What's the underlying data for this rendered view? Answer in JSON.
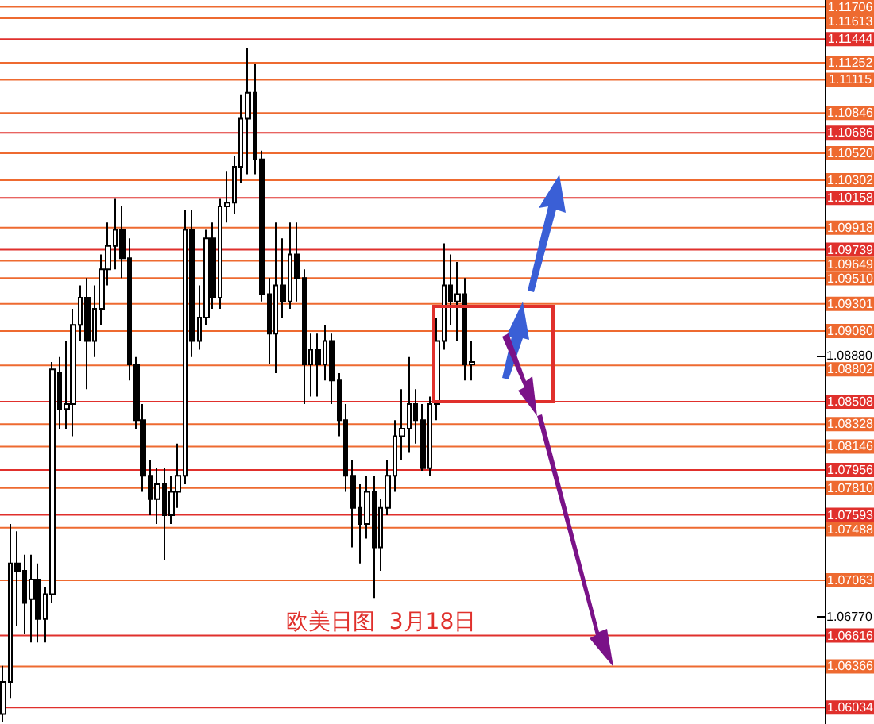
{
  "chart_data": {
    "type": "candlestick",
    "color": "#000000",
    "categories": [
      null,
      null,
      null,
      null,
      null,
      null,
      null,
      null,
      null,
      null,
      null,
      null,
      null,
      null,
      null,
      null,
      null,
      null,
      null,
      null,
      null,
      null,
      null,
      null,
      null,
      null,
      null,
      null,
      null,
      null,
      null,
      null,
      null,
      null,
      null,
      null,
      null,
      null,
      null,
      null,
      null,
      null,
      null,
      null,
      null,
      null,
      null,
      null,
      null,
      null,
      null,
      null,
      null,
      null,
      null,
      null,
      null,
      null,
      null,
      null,
      null,
      null,
      null,
      null,
      null,
      null,
      null,
      null,
      null,
      null,
      null,
      null,
      null,
      null,
      null,
      null,
      null,
      null,
      null,
      null,
      null,
      null,
      null,
      null,
      null,
      null,
      null,
      null,
      null,
      null,
      null,
      null,
      null,
      null,
      null,
      null,
      null,
      null,
      null,
      null,
      null,
      null,
      null,
      null,
      null,
      null,
      null,
      null,
      null,
      null,
      null,
      null,
      null,
      null,
      null,
      null,
      null,
      null
    ],
    "ohlc": [
      [
        1.0598,
        1.0637,
        1.0592,
        1.0624
      ],
      [
        1.0624,
        1.0752,
        1.0611,
        1.072
      ],
      [
        1.072,
        1.0746,
        1.0669,
        1.0714
      ],
      [
        1.0714,
        1.0727,
        1.0663,
        1.0688
      ],
      [
        1.0691,
        1.0727,
        1.0656,
        1.0707
      ],
      [
        1.0707,
        1.072,
        1.0656,
        1.0675
      ],
      [
        1.0675,
        1.0701,
        1.0656,
        1.0695
      ],
      [
        1.0695,
        1.0883,
        1.0688,
        1.0877
      ],
      [
        1.0874,
        1.0887,
        1.0829,
        1.0845
      ],
      [
        1.0845,
        1.09,
        1.0829,
        1.0849
      ],
      [
        1.0849,
        1.0926,
        1.0823,
        1.0913
      ],
      [
        1.0913,
        1.0945,
        1.09,
        1.0935
      ],
      [
        1.0935,
        1.0951,
        1.0861,
        1.09
      ],
      [
        1.09,
        1.0945,
        1.0887,
        1.0926
      ],
      [
        1.0926,
        1.097,
        1.0913,
        1.0958
      ],
      [
        1.0958,
        1.0996,
        1.0945,
        1.0977
      ],
      [
        1.0977,
        1.1015,
        1.0958,
        1.099
      ],
      [
        1.099,
        1.1009,
        1.0951,
        1.0967
      ],
      [
        1.0967,
        1.0983,
        1.0868,
        1.0881
      ],
      [
        1.0881,
        1.0887,
        1.0829,
        1.0836
      ],
      [
        1.0836,
        1.0849,
        1.0778,
        1.0791
      ],
      [
        1.0791,
        1.0804,
        1.0759,
        1.0772
      ],
      [
        1.0772,
        1.0797,
        1.0752,
        1.0784
      ],
      [
        1.0784,
        1.0797,
        1.0723,
        1.0759
      ],
      [
        1.0759,
        1.0791,
        1.0752,
        1.0778
      ],
      [
        1.0778,
        1.0817,
        1.0765,
        1.0791
      ],
      [
        1.0791,
        1.1006,
        1.0784,
        1.099
      ],
      [
        1.099,
        1.1006,
        1.0887,
        1.09
      ],
      [
        1.09,
        1.0945,
        1.0893,
        1.0919
      ],
      [
        1.0919,
        1.099,
        1.0913,
        1.0983
      ],
      [
        1.0983,
        1.0996,
        1.0926,
        1.0935
      ],
      [
        1.0935,
        1.1015,
        1.0926,
        1.1009
      ],
      [
        1.1009,
        1.1037,
        1.0996,
        1.1012
      ],
      [
        1.1012,
        1.105,
        1.1003,
        1.1041
      ],
      [
        1.1041,
        1.1099,
        1.1028,
        1.108
      ],
      [
        1.108,
        1.1137,
        1.1035,
        1.1101
      ],
      [
        1.1101,
        1.1124,
        1.1035,
        1.1047
      ],
      [
        1.1047,
        1.1054,
        1.0932,
        1.0938
      ],
      [
        1.0938,
        1.0951,
        1.0881,
        1.0906
      ],
      [
        1.0906,
        1.0996,
        1.0874,
        1.0945
      ],
      [
        1.0945,
        1.0983,
        1.0919,
        1.0932
      ],
      [
        1.0932,
        1.0996,
        1.0926,
        1.097
      ],
      [
        1.097,
        1.0996,
        1.0932,
        1.0951
      ],
      [
        1.0951,
        1.0958,
        1.0849,
        1.0881
      ],
      [
        1.0881,
        1.0906,
        1.0855,
        1.0893
      ],
      [
        1.0893,
        1.0906,
        1.0855,
        1.0881
      ],
      [
        1.0881,
        1.0913,
        1.0868,
        1.09
      ],
      [
        1.09,
        1.0906,
        1.0849,
        1.0868
      ],
      [
        1.0868,
        1.0874,
        1.0823,
        1.0836
      ],
      [
        1.0836,
        1.0849,
        1.0778,
        1.0791
      ],
      [
        1.0791,
        1.0804,
        1.0733,
        1.0765
      ],
      [
        1.0765,
        1.0784,
        1.072,
        1.0752
      ],
      [
        1.0752,
        1.0791,
        1.074,
        1.0778
      ],
      [
        1.0778,
        1.0791,
        1.0692,
        1.0733
      ],
      [
        1.0733,
        1.0772,
        1.0714,
        1.0765
      ],
      [
        1.0765,
        1.0804,
        1.0759,
        1.0791
      ],
      [
        1.0791,
        1.0836,
        1.0778,
        1.0823
      ],
      [
        1.0823,
        1.0861,
        1.0804,
        1.0829
      ],
      [
        1.0829,
        1.0887,
        1.081,
        1.0849
      ],
      [
        1.0849,
        1.0861,
        1.0817,
        1.0836
      ],
      [
        1.0836,
        1.0849,
        1.0795,
        1.0797
      ],
      [
        1.0797,
        1.0855,
        1.0791,
        1.0849
      ],
      [
        1.0849,
        1.0919,
        1.0836,
        1.09
      ],
      [
        1.09,
        1.0979,
        1.0893,
        1.0945
      ],
      [
        1.0945,
        1.097,
        1.0913,
        1.0932
      ],
      [
        1.0932,
        1.0964,
        1.09,
        1.0938
      ],
      [
        1.0938,
        1.0951,
        1.0868,
        1.0881
      ],
      [
        1.0881,
        1.09,
        1.0868,
        1.0883
      ],
      null,
      null,
      null,
      null,
      null,
      null,
      null,
      null,
      null,
      null,
      null,
      null,
      null,
      null,
      null,
      null,
      null,
      null,
      null,
      null,
      null,
      null,
      null,
      null,
      null,
      null,
      null,
      null,
      null,
      null,
      null,
      null,
      null,
      null,
      null,
      null,
      null,
      null,
      null,
      null,
      null,
      null,
      null,
      null,
      null,
      null,
      null,
      null,
      null,
      null
    ],
    "ylim": [
      1.059,
      1.1176
    ],
    "yticks": [
      {
        "value": 1.0677,
        "label": "1.06770"
      },
      {
        "value": 1.0888,
        "label": "1.08880"
      }
    ],
    "ref_lines": [
      {
        "axis": "y",
        "value": 1.11706,
        "label": "1.11706",
        "color": "#ee6a30"
      },
      {
        "axis": "y",
        "value": 1.11613,
        "label": "1.11613",
        "color": "#ee6a30"
      },
      {
        "axis": "y",
        "value": 1.11444,
        "label": "1.11444",
        "color": "#e0302c"
      },
      {
        "axis": "y",
        "value": 1.11252,
        "label": "1.11252",
        "color": "#ee6a30"
      },
      {
        "axis": "y",
        "value": 1.11115,
        "label": "1.11115",
        "color": "#ee6a30"
      },
      {
        "axis": "y",
        "value": 1.10846,
        "label": "1.10846",
        "color": "#ee6a30"
      },
      {
        "axis": "y",
        "value": 1.10686,
        "label": "1.10686",
        "color": "#e0302c"
      },
      {
        "axis": "y",
        "value": 1.1052,
        "label": "1.10520",
        "color": "#ee6a30"
      },
      {
        "axis": "y",
        "value": 1.10302,
        "label": "1.10302",
        "color": "#ee6a30"
      },
      {
        "axis": "y",
        "value": 1.10158,
        "label": "1.10158",
        "color": "#e0302c"
      },
      {
        "axis": "y",
        "value": 1.09918,
        "label": "1.09918",
        "color": "#ee6a30"
      },
      {
        "axis": "y",
        "value": 1.09739,
        "label": "1.09739",
        "color": "#e0302c"
      },
      {
        "axis": "y",
        "value": 1.09649,
        "label": "1.09649",
        "color": "#ee6a30"
      },
      {
        "axis": "y",
        "value": 1.0951,
        "label": "1.09510",
        "color": "#ee6a30"
      },
      {
        "axis": "y",
        "value": 1.09301,
        "label": "1.09301",
        "color": "#ee6a30"
      },
      {
        "axis": "y",
        "value": 1.0908,
        "label": "1.09080",
        "color": "#ee6a30"
      },
      {
        "axis": "y",
        "value": 1.08802,
        "label": "1.08802",
        "color": "#ee6a30"
      },
      {
        "axis": "y",
        "value": 1.08508,
        "label": "1.08508",
        "color": "#e0302c"
      },
      {
        "axis": "y",
        "value": 1.08328,
        "label": "1.08328",
        "color": "#ee6a30"
      },
      {
        "axis": "y",
        "value": 1.08146,
        "label": "1.08146",
        "color": "#ee6a30"
      },
      {
        "axis": "y",
        "value": 1.07956,
        "label": "1.07956",
        "color": "#e0302c"
      },
      {
        "axis": "y",
        "value": 1.0781,
        "label": "1.07810",
        "color": "#ee6a30"
      },
      {
        "axis": "y",
        "value": 1.07593,
        "label": "1.07593",
        "color": "#e0302c"
      },
      {
        "axis": "y",
        "value": 1.07488,
        "label": "1.07488",
        "color": "#ee6a30"
      },
      {
        "axis": "y",
        "value": 1.07063,
        "label": "1.07063",
        "color": "#ee6a30"
      },
      {
        "axis": "y",
        "value": 1.06616,
        "label": "1.06616",
        "color": "#e0302c"
      },
      {
        "axis": "y",
        "value": 1.06366,
        "label": "1.06366",
        "color": "#ee6a30"
      },
      {
        "axis": "y",
        "value": 1.06034,
        "label": "1.06034",
        "color": "#e0302c"
      }
    ],
    "annotations": [
      "欧美日图  3月18日"
    ]
  }
}
